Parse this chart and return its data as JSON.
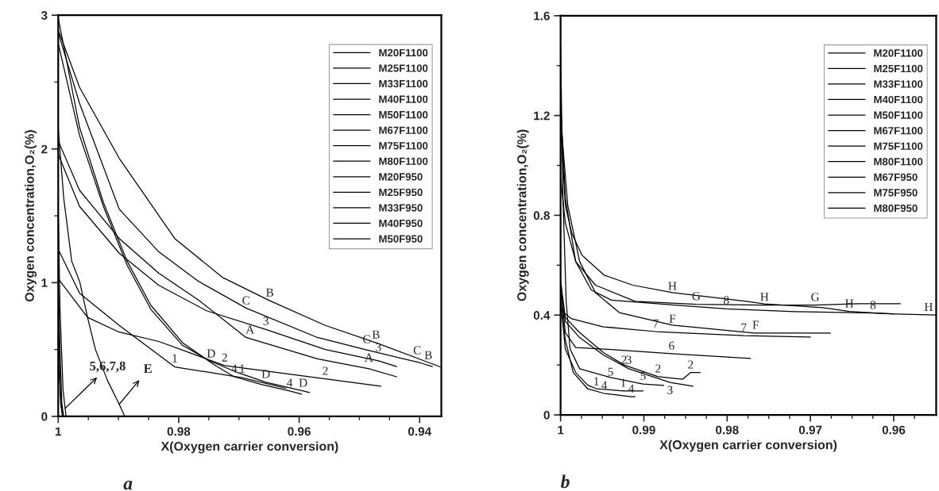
{
  "chart_data": [
    {
      "type": "line",
      "xlabel": "X(Oxygen carrier conversion)",
      "ylabel": "Oxygen concentration,O₂(%)",
      "xlim": [
        1,
        0.9364
      ],
      "ylim": [
        0,
        3
      ],
      "xticks": [
        1,
        {
          "value": 0.995,
          "label": null
        },
        {
          "value": 0.99,
          "label": null
        },
        {
          "value": 0.985,
          "label": null
        },
        0.98,
        {
          "value": 0.975,
          "label": null
        },
        {
          "value": 0.97,
          "label": null
        },
        {
          "value": 0.965,
          "label": null
        },
        0.96,
        {
          "value": 0.955,
          "label": null
        },
        {
          "value": 0.95,
          "label": null
        },
        {
          "value": 0.945,
          "label": null
        },
        0.94
      ],
      "yticks": [
        0,
        {
          "value": 0.5,
          "label": null
        },
        1,
        {
          "value": 1.5,
          "label": null
        },
        2,
        {
          "value": 2.5,
          "label": null
        },
        3
      ],
      "legend": "top right",
      "series": [
        {
          "name": "M20F1100",
          "color": "#000000",
          "x": [
            1,
            0.99645,
            0.98987,
            0.98066,
            0.96947,
            0.96224
          ],
          "values": [
            1.25,
            0.92,
            0.68,
            0.37,
            0.29,
            0.21
          ]
        },
        {
          "name": "M25F1100",
          "color": "#000000",
          "x": [
            1,
            0.99513,
            0.98987,
            0.98329,
            0.97237,
            0.95566,
            0.94645
          ],
          "values": [
            1.03,
            0.74,
            0.63,
            0.56,
            0.38,
            0.28,
            0.225
          ]
        },
        {
          "name": "M33F1100",
          "color": "#000000",
          "x": [
            1,
            0.99645,
            0.98987,
            0.98329,
            0.97539,
            0.96553,
            0.95566,
            0.94684,
            0.94382
          ],
          "values": [
            1.96,
            1.57,
            1.22,
            0.98,
            0.79,
            0.65,
            0.5,
            0.415,
            0.373
          ]
        },
        {
          "name": "M40F1100",
          "color": "#000000",
          "x": [
            1,
            0.99645,
            0.9925,
            0.98855,
            0.98461,
            0.97934,
            0.97408,
            0.97079,
            0.96618,
            0.96158,
            0.9596
          ],
          "values": [
            2.98,
            2.16,
            1.6,
            1.16,
            0.83,
            0.55,
            0.385,
            0.296,
            0.237,
            0.19,
            0.166
          ]
        },
        {
          "name": "M50F1100",
          "color": "#000000",
          "x": [
            1,
            0.9997,
            0.9992,
            0.9987
          ],
          "values": [
            1.55,
            0.8,
            0.2,
            0
          ]
        },
        {
          "name": "M67F1100",
          "color": "#000000",
          "x": [
            1,
            0.9998,
            0.9995,
            0.9992
          ],
          "values": [
            0.6,
            0.3,
            0.08,
            0
          ]
        },
        {
          "name": "M75F1100",
          "color": "#000000",
          "x": [
            1,
            0.9997,
            0.9994,
            0.9991
          ],
          "values": [
            1.0,
            0.5,
            0.1,
            0
          ]
        },
        {
          "name": "M80F1100",
          "color": "#000000",
          "x": [
            1,
            0.9998,
            0.9996,
            0.9993
          ],
          "values": [
            0.85,
            0.4,
            0.1,
            0
          ]
        },
        {
          "name": "M20F950",
          "color": "#000000",
          "x": [
            1,
            0.99645,
            0.98987,
            0.98329,
            0.97671,
            0.96882,
            0.95697,
            0.94842,
            0.94382
          ],
          "values": [
            2.06,
            1.69,
            1.33,
            1.07,
            0.87,
            0.59,
            0.43,
            0.356,
            0.296
          ]
        },
        {
          "name": "M25F950",
          "color": "#000000",
          "x": [
            1,
            0.99645,
            0.98987,
            0.98066,
            0.97276,
            0.96487,
            0.95566,
            0.94724,
            0.93658
          ],
          "values": [
            2.89,
            2.46,
            1.93,
            1.33,
            1.04,
            0.865,
            0.68,
            0.55,
            0.37
          ]
        },
        {
          "name": "M33F950",
          "color": "#000000",
          "x": [
            1,
            0.99645,
            0.98987,
            0.98329,
            0.97671,
            0.96882,
            0.95697,
            0.94908,
            0.93987,
            0.9379
          ],
          "values": [
            2.87,
            2.34,
            1.55,
            1.23,
            1.01,
            0.81,
            0.59,
            0.5,
            0.4,
            0.373
          ]
        },
        {
          "name": "M40F950",
          "color": "#000000",
          "x": [
            1,
            0.99645,
            0.9925,
            0.98855,
            0.98461,
            0.97934,
            0.97461,
            0.97013,
            0.96553,
            0.95934,
            0.95829
          ],
          "values": [
            2.79,
            2.1,
            1.57,
            1.13,
            0.8,
            0.53,
            0.41,
            0.326,
            0.255,
            0.19,
            0.178
          ]
        },
        {
          "name": "M50F950",
          "color": "#000000",
          "x": [
            1,
            0.99908,
            0.99776,
            0.99645,
            0.99513,
            0.99382,
            0.99184,
            0.98987,
            0.98895
          ],
          "values": [
            2.15,
            1.63,
            1.16,
            1.01,
            0.74,
            0.5,
            0.27,
            0.09,
            0
          ]
        }
      ],
      "annotations": [
        {
          "text": "B",
          "x": 0.96487,
          "y": 0.865
        },
        {
          "text": "C",
          "x": 0.96882,
          "y": 0.806
        },
        {
          "text": "3",
          "x": 0.96553,
          "y": 0.652
        },
        {
          "text": "A",
          "x": 0.96816,
          "y": 0.587
        },
        {
          "text": "D",
          "x": 0.97461,
          "y": 0.409
        },
        {
          "text": "2",
          "x": 0.97237,
          "y": 0.379
        },
        {
          "text": "1",
          "x": 0.98066,
          "y": 0.373
        },
        {
          "text": "4",
          "x": 0.97079,
          "y": 0.296
        },
        {
          "text": "1",
          "x": 0.96947,
          "y": 0.296
        },
        {
          "text": "D",
          "x": 0.96553,
          "y": 0.255
        },
        {
          "text": "4",
          "x": 0.96158,
          "y": 0.19
        },
        {
          "text": "D",
          "x": 0.95934,
          "y": 0.19
        },
        {
          "text": "B",
          "x": 0.94724,
          "y": 0.551
        },
        {
          "text": "C",
          "x": 0.9488,
          "y": 0.516
        },
        {
          "text": "3",
          "x": 0.94684,
          "y": 0.456
        },
        {
          "text": "A",
          "x": 0.94842,
          "y": 0.379
        },
        {
          "text": "2",
          "x": 0.95566,
          "y": 0.279
        },
        {
          "text": "C",
          "x": 0.9404,
          "y": 0.433
        },
        {
          "text": "B",
          "x": 0.93855,
          "y": 0.397
        },
        {
          "text": "5,6,7,8",
          "x": 0.99885,
          "y": 0.06
        },
        {
          "text": "E",
          "x": 0.98987,
          "y": 0.09
        },
        "a"
      ]
    },
    {
      "type": "line",
      "xlabel": "X(Oxygen carrier conversion)",
      "ylabel": "Oxygen concentration,O₂(%)",
      "xlim": [
        1,
        0.9549
      ],
      "ylim": [
        0,
        1.6
      ],
      "xticks": [
        1,
        {
          "value": 0.9975,
          "label": null
        },
        {
          "value": 0.995,
          "label": null
        },
        {
          "value": 0.9925,
          "label": null
        },
        0.99,
        {
          "value": 0.9875,
          "label": null
        },
        {
          "value": 0.985,
          "label": null
        },
        {
          "value": 0.9825,
          "label": null
        },
        0.98,
        {
          "value": 0.9775,
          "label": null
        },
        {
          "value": 0.975,
          "label": null
        },
        {
          "value": 0.9725,
          "label": null
        },
        0.97,
        {
          "value": 0.9675,
          "label": null
        },
        {
          "value": 0.965,
          "label": null
        },
        {
          "value": 0.9625,
          "label": null
        },
        0.96,
        {
          "value": 0.9575,
          "label": null
        }
      ],
      "yticks": [
        0,
        {
          "value": 0.2,
          "label": null
        },
        0.4,
        {
          "value": 0.6,
          "label": null
        },
        0.8,
        {
          "value": 1.0,
          "label": null
        },
        1.2,
        {
          "value": 1.4,
          "label": null
        },
        1.6
      ],
      "legend": "top right",
      "series": [
        {
          "name": "M20F1100",
          "color": "#000000",
          "x": [
            1,
            0.99943,
            0.99819,
            0.99676,
            0.99571,
            0.99248,
            0.9901
          ],
          "values": [
            0.455,
            0.264,
            0.17,
            0.12,
            0.105,
            0.096,
            0.096
          ]
        },
        {
          "name": "M25F1100",
          "color": "#000000",
          "x": [
            1,
            0.99943,
            0.99771,
            0.99486,
            0.99238,
            0.98829,
            0.98533,
            0.98438,
            0.98324
          ],
          "values": [
            0.54,
            0.39,
            0.33,
            0.25,
            0.2,
            0.153,
            0.143,
            0.17,
            0.17
          ]
        },
        {
          "name": "M33F1100",
          "color": "#000000",
          "x": [
            1,
            0.99943,
            0.99771,
            0.99486,
            0.99181,
            0.98686,
            0.9841
          ],
          "values": [
            0.5,
            0.375,
            0.31,
            0.24,
            0.185,
            0.13,
            0.115
          ]
        },
        {
          "name": "M40F1100",
          "color": "#000000",
          "x": [
            1,
            0.99943,
            0.99848,
            0.99676,
            0.99476,
            0.99152,
            0.99105
          ],
          "values": [
            0.47,
            0.3,
            0.17,
            0.105,
            0.086,
            0.073,
            0.073
          ]
        },
        {
          "name": "M50F1100",
          "color": "#000000",
          "x": [
            1,
            0.99971,
            0.99933,
            0.99886,
            0.99771,
            0.994,
            0.9901,
            0.98762
          ],
          "values": [
            1.48,
            0.87,
            0.455,
            0.264,
            0.185,
            0.15,
            0.124,
            0.118
          ]
        },
        {
          "name": "M67F1100",
          "color": "#000000",
          "x": [
            1,
            0.99943,
            0.99819,
            0.99486,
            0.98667,
            0.9772
          ],
          "values": [
            0.52,
            0.33,
            0.27,
            0.264,
            0.245,
            0.226
          ]
        },
        {
          "name": "M75F1100",
          "color": "#000000",
          "x": [
            1,
            0.99867,
            0.99486,
            0.98857,
            0.978,
            0.97
          ],
          "values": [
            0.42,
            0.385,
            0.353,
            0.334,
            0.318,
            0.312
          ]
        },
        {
          "name": "M80F1100",
          "color": "#000000",
          "x": [
            1,
            0.99943,
            0.99819,
            0.9963,
            0.9939,
            0.98629,
            0.9801,
            0.9719,
            0.96248,
            0.96
          ],
          "values": [
            1.25,
            0.87,
            0.615,
            0.5,
            0.46,
            0.44,
            0.425,
            0.414,
            0.408,
            0.405
          ]
        },
        {
          "name": "M67F950",
          "color": "#000000",
          "x": [
            1,
            0.99914,
            0.99771,
            0.99581,
            0.99295,
            0.98657,
            0.97676,
            0.9676
          ],
          "values": [
            1.19,
            0.84,
            0.615,
            0.49,
            0.41,
            0.36,
            0.328,
            0.328
          ]
        },
        {
          "name": "M75F950",
          "color": "#000000",
          "x": [
            1,
            0.99943,
            0.99819,
            0.99581,
            0.99105,
            0.98371,
            0.9758,
            0.96943,
            0.9643,
            0.9592
          ],
          "values": [
            0.95,
            0.77,
            0.615,
            0.52,
            0.455,
            0.443,
            0.44,
            0.44,
            0.446,
            0.446
          ]
        },
        {
          "name": "M80F950",
          "color": "#000000",
          "x": [
            1,
            0.99943,
            0.99867,
            0.99743,
            0.99476,
            0.99133,
            0.98657,
            0.97771,
            0.97552,
            0.96848,
            0.96533,
            0.96057,
            0.9549
          ],
          "values": [
            1.17,
            0.84,
            0.73,
            0.64,
            0.56,
            0.52,
            0.49,
            0.455,
            0.445,
            0.43,
            0.415,
            0.405,
            0.4
          ]
        }
      ],
      "annotations": [
        {
          "text": "H",
          "x": 0.98657,
          "y": 0.484
        },
        {
          "text": "H",
          "x": 0.97552,
          "y": 0.44
        },
        {
          "text": "H",
          "x": 0.96533,
          "y": 0.414
        },
        {
          "text": "H",
          "x": 0.95581,
          "y": 0.4
        },
        {
          "text": "G",
          "x": 0.98371,
          "y": 0.443
        },
        {
          "text": "G",
          "x": 0.96943,
          "y": 0.44
        },
        {
          "text": "8",
          "x": 0.9801,
          "y": 0.427
        },
        {
          "text": "8",
          "x": 0.96248,
          "y": 0.408
        },
        {
          "text": "F",
          "x": 0.98657,
          "y": 0.353
        },
        {
          "text": "F",
          "x": 0.97657,
          "y": 0.328
        },
        {
          "text": "7",
          "x": 0.98857,
          "y": 0.334
        },
        {
          "text": "7",
          "x": 0.978,
          "y": 0.318
        },
        {
          "text": "6",
          "x": 0.98667,
          "y": 0.245
        },
        {
          "text": "2",
          "x": 0.99238,
          "y": 0.188
        },
        {
          "text": "2",
          "x": 0.98829,
          "y": 0.153
        },
        {
          "text": "2",
          "x": 0.98438,
          "y": 0.169
        },
        {
          "text": "3",
          "x": 0.99181,
          "y": 0.188
        },
        {
          "text": "3",
          "x": 0.98686,
          "y": 0.124
        },
        {
          "text": "5",
          "x": 0.994,
          "y": 0.14
        },
        {
          "text": "5",
          "x": 0.9901,
          "y": 0.124
        },
        {
          "text": "1",
          "x": 0.99571,
          "y": 0.102
        },
        {
          "text": "1",
          "x": 0.99248,
          "y": 0.096
        },
        {
          "text": "4",
          "x": 0.99476,
          "y": 0.086
        },
        {
          "text": "4",
          "x": 0.99152,
          "y": 0.073
        },
        "b"
      ]
    }
  ]
}
